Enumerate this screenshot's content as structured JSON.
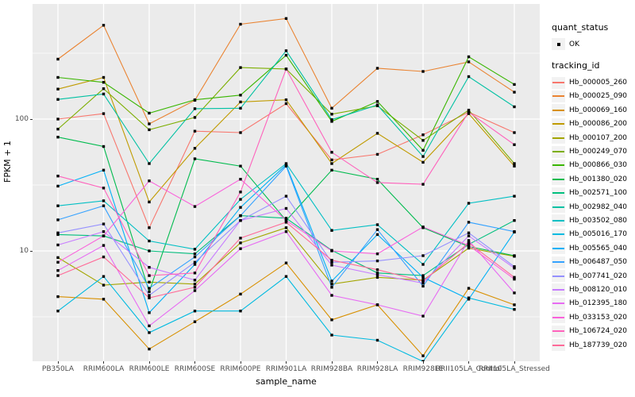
{
  "chart_data": {
    "type": "line",
    "title": "",
    "xlabel": "sample_name",
    "ylabel": "FPKM + 1",
    "y_scale": "log10",
    "y_tick_labels": [
      "100",
      "10"
    ],
    "y_tick_values": [
      100,
      10
    ],
    "y_minor_gridlines": [
      3.162,
      31.62,
      316.2
    ],
    "ylim": [
      1.45,
      750
    ],
    "grid": true,
    "panel_background": "#EBEBEB",
    "gridline_color": "#FFFFFF",
    "point_shape": "filled-black-square",
    "point_color": "#000000",
    "legend_position": "right",
    "categories": [
      "PB350LA",
      "RRIM600LA",
      "RRIM600LE",
      "RRIM600SE",
      "RRIM600PE",
      "RRIM901LA",
      "RRIM928BA",
      "RRIM928LA",
      "RRIM928LE",
      "RRII105LA_Control",
      "RRII105LA_Stressed"
    ],
    "legend": {
      "quant_status_title": "quant_status",
      "quant_status_items": [
        {
          "label": "OK",
          "marker": "black-point"
        }
      ],
      "tracking_id_title": "tracking_id"
    },
    "series": [
      {
        "tracking_id": "Hb_000005_260",
        "color": "#F8766D",
        "values": [
          100,
          110,
          15,
          81,
          79,
          131,
          49,
          54,
          76,
          113,
          79
        ]
      },
      {
        "tracking_id": "Hb_000025_090",
        "color": "#EA8331",
        "values": [
          285,
          515,
          92,
          139,
          525,
          580,
          121,
          243,
          230,
          272,
          160
        ]
      },
      {
        "tracking_id": "Hb_000069_160",
        "color": "#D89000",
        "values": [
          4.5,
          4.3,
          1.8,
          2.9,
          4.7,
          8.1,
          3.0,
          3.9,
          1.6,
          5.2,
          3.9
        ]
      },
      {
        "tracking_id": "Hb_000086_200",
        "color": "#C09B00",
        "values": [
          169,
          207,
          23.5,
          60,
          135,
          140,
          46,
          78,
          47,
          110,
          44
        ]
      },
      {
        "tracking_id": "Hb_000107_200",
        "color": "#A3A500",
        "values": [
          8.9,
          5.5,
          5.8,
          5.6,
          11.5,
          15,
          5.6,
          6.3,
          6.0,
          10.5,
          9.1
        ]
      },
      {
        "tracking_id": "Hb_000249_070",
        "color": "#7CAE00",
        "values": [
          84,
          170,
          83,
          103,
          246,
          240,
          109,
          126,
          69,
          117,
          46
        ]
      },
      {
        "tracking_id": "Hb_000866_030",
        "color": "#39B600",
        "values": [
          207,
          190,
          111,
          140,
          152,
          305,
          96,
          136,
          58,
          297,
          183
        ]
      },
      {
        "tracking_id": "Hb_001380_020",
        "color": "#00BB4E",
        "values": [
          73,
          62,
          4.9,
          50,
          44,
          17,
          41,
          35,
          15,
          10.8,
          9.2
        ]
      },
      {
        "tracking_id": "Hb_002571_100",
        "color": "#00BF7D",
        "values": [
          13.3,
          13,
          10,
          9.5,
          18.5,
          17.7,
          10.1,
          6.8,
          6.5,
          11.2,
          17
        ]
      },
      {
        "tracking_id": "Hb_002982_040",
        "color": "#00C1A3",
        "values": [
          141,
          155,
          46,
          120,
          121,
          330,
          99,
          128,
          52,
          210,
          124
        ]
      },
      {
        "tracking_id": "Hb_003502_080",
        "color": "#00BFC4",
        "values": [
          22,
          24,
          11.9,
          10.3,
          24.6,
          46,
          14.3,
          15.8,
          7.9,
          23,
          26
        ]
      },
      {
        "tracking_id": "Hb_005016_170",
        "color": "#00BAE0",
        "values": [
          3.5,
          6.4,
          2.4,
          3.5,
          3.5,
          6.4,
          2.3,
          2.1,
          1.45,
          4.4,
          3.6
        ]
      },
      {
        "tracking_id": "Hb_005565_040",
        "color": "#00B0F6",
        "values": [
          31,
          41,
          3.4,
          7.9,
          21.4,
          45,
          5.9,
          13.3,
          6.3,
          4.3,
          13.9
        ]
      },
      {
        "tracking_id": "Hb_006487_050",
        "color": "#35A2FF",
        "values": [
          17.2,
          22,
          5.2,
          9.0,
          18.5,
          44,
          5.3,
          14.5,
          5.4,
          16.5,
          14
        ]
      },
      {
        "tracking_id": "Hb_007741_020",
        "color": "#9590FF",
        "values": [
          13.7,
          16,
          4.6,
          8.2,
          17,
          26,
          8.2,
          8.4,
          9.2,
          13.7,
          7.6
        ]
      },
      {
        "tracking_id": "Hb_008120_010",
        "color": "#C77CFF",
        "values": [
          11.1,
          14,
          7.5,
          6.0,
          17,
          21,
          7.8,
          6.6,
          5.7,
          13,
          7.4
        ]
      },
      {
        "tracking_id": "Hb_012395_180",
        "color": "#E76BF3",
        "values": [
          7.1,
          11,
          2.7,
          5.0,
          10.4,
          14,
          4.6,
          3.9,
          3.2,
          12,
          4.8
        ]
      },
      {
        "tracking_id": "Hb_033153_020",
        "color": "#FA62DB",
        "values": [
          8.2,
          13,
          34,
          21.7,
          35,
          17,
          10,
          9.5,
          15.2,
          11,
          6.1
        ]
      },
      {
        "tracking_id": "Hb_106724_020",
        "color": "#FF62BC",
        "values": [
          37,
          30,
          6.5,
          6.8,
          28,
          240,
          56,
          33,
          32,
          113,
          64
        ]
      },
      {
        "tracking_id": "Hb_187739_020",
        "color": "#FF6A98",
        "values": [
          6.5,
          9,
          4.4,
          5.3,
          12.5,
          16.5,
          8.5,
          7.2,
          5.9,
          11.5,
          6.3
        ]
      }
    ]
  }
}
